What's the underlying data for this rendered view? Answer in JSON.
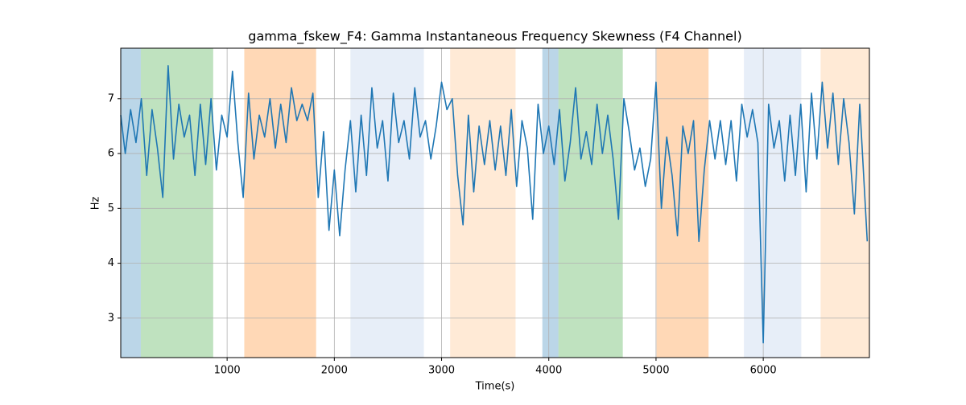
{
  "chart_data": {
    "type": "line",
    "title": "gamma_fskew_F4: Gamma Instantaneous Frequency Skewness (F4 Channel)",
    "xlabel": "Time(s)",
    "ylabel": "Hz",
    "xlim": [
      8,
      6990
    ],
    "ylim": [
      2.28,
      7.92
    ],
    "xticks": [
      1000,
      2000,
      3000,
      4000,
      5000,
      6000
    ],
    "yticks": [
      3,
      4,
      5,
      6,
      7
    ],
    "grid": true,
    "color": "#1f77b4",
    "spans": [
      {
        "start": 8,
        "end": 195,
        "color": "#1f77b4",
        "alpha": 0.3
      },
      {
        "start": 195,
        "end": 870,
        "color": "#2ca02c",
        "alpha": 0.3
      },
      {
        "start": 1160,
        "end": 1830,
        "color": "#ff7f0e",
        "alpha": 0.3
      },
      {
        "start": 2150,
        "end": 2835,
        "color": "#aec7e8",
        "alpha": 0.3
      },
      {
        "start": 3080,
        "end": 3690,
        "color": "#ffbb78",
        "alpha": 0.3
      },
      {
        "start": 3940,
        "end": 4090,
        "color": "#1f77b4",
        "alpha": 0.3
      },
      {
        "start": 4090,
        "end": 4690,
        "color": "#2ca02c",
        "alpha": 0.3
      },
      {
        "start": 5005,
        "end": 5490,
        "color": "#ff7f0e",
        "alpha": 0.3
      },
      {
        "start": 5820,
        "end": 6355,
        "color": "#aec7e8",
        "alpha": 0.3
      },
      {
        "start": 6535,
        "end": 6990,
        "color": "#ffbb78",
        "alpha": 0.3
      }
    ],
    "x": [
      8,
      50,
      100,
      150,
      200,
      250,
      300,
      350,
      400,
      450,
      500,
      550,
      600,
      650,
      700,
      750,
      800,
      850,
      900,
      950,
      1000,
      1050,
      1100,
      1150,
      1200,
      1250,
      1300,
      1350,
      1400,
      1450,
      1500,
      1550,
      1600,
      1650,
      1700,
      1750,
      1800,
      1850,
      1900,
      1950,
      2000,
      2050,
      2100,
      2150,
      2200,
      2250,
      2300,
      2350,
      2400,
      2450,
      2500,
      2550,
      2600,
      2650,
      2700,
      2750,
      2800,
      2850,
      2900,
      2950,
      3000,
      3050,
      3100,
      3150,
      3200,
      3250,
      3300,
      3350,
      3400,
      3450,
      3500,
      3550,
      3600,
      3650,
      3700,
      3750,
      3800,
      3850,
      3900,
      3950,
      4000,
      4050,
      4100,
      4150,
      4200,
      4250,
      4300,
      4350,
      4400,
      4450,
      4500,
      4550,
      4600,
      4650,
      4700,
      4750,
      4800,
      4850,
      4900,
      4950,
      5000,
      5050,
      5100,
      5150,
      5200,
      5250,
      5300,
      5350,
      5400,
      5450,
      5500,
      5550,
      5600,
      5650,
      5700,
      5750,
      5800,
      5850,
      5900,
      5950,
      6000,
      6050,
      6100,
      6150,
      6200,
      6250,
      6300,
      6350,
      6400,
      6450,
      6500,
      6550,
      6600,
      6650,
      6700,
      6750,
      6800,
      6850,
      6900,
      6970
    ],
    "values": [
      6.7,
      6.0,
      6.8,
      6.2,
      7.0,
      5.6,
      6.8,
      6.1,
      5.2,
      7.6,
      5.9,
      6.9,
      6.3,
      6.7,
      5.6,
      6.9,
      5.8,
      7.0,
      5.7,
      6.7,
      6.3,
      7.5,
      6.2,
      5.2,
      7.1,
      5.9,
      6.7,
      6.3,
      7.0,
      6.1,
      6.9,
      6.2,
      7.2,
      6.6,
      6.9,
      6.6,
      7.1,
      5.2,
      6.4,
      4.6,
      5.7,
      4.5,
      5.7,
      6.6,
      5.3,
      6.7,
      5.6,
      7.2,
      6.1,
      6.6,
      5.5,
      7.1,
      6.2,
      6.6,
      5.9,
      7.2,
      6.3,
      6.6,
      5.9,
      6.5,
      7.3,
      6.8,
      7.0,
      5.6,
      4.7,
      6.7,
      5.3,
      6.5,
      5.8,
      6.6,
      5.7,
      6.5,
      5.6,
      6.8,
      5.4,
      6.6,
      6.1,
      4.8,
      6.9,
      6.0,
      6.5,
      5.8,
      6.8,
      5.5,
      6.2,
      7.2,
      5.9,
      6.4,
      5.8,
      6.9,
      6.0,
      6.7,
      5.9,
      4.8,
      7.0,
      6.4,
      5.7,
      6.1,
      5.4,
      5.9,
      7.3,
      5.0,
      6.3,
      5.6,
      4.5,
      6.5,
      6.0,
      6.6,
      4.4,
      5.7,
      6.6,
      5.9,
      6.6,
      5.8,
      6.6,
      5.5,
      6.9,
      6.3,
      6.8,
      6.2,
      2.55,
      6.9,
      6.1,
      6.6,
      5.5,
      6.7,
      5.6,
      6.9,
      5.3,
      7.1,
      5.9,
      7.3,
      6.1,
      7.1,
      5.8,
      7.0,
      6.2,
      4.9,
      6.9,
      4.4
    ]
  }
}
